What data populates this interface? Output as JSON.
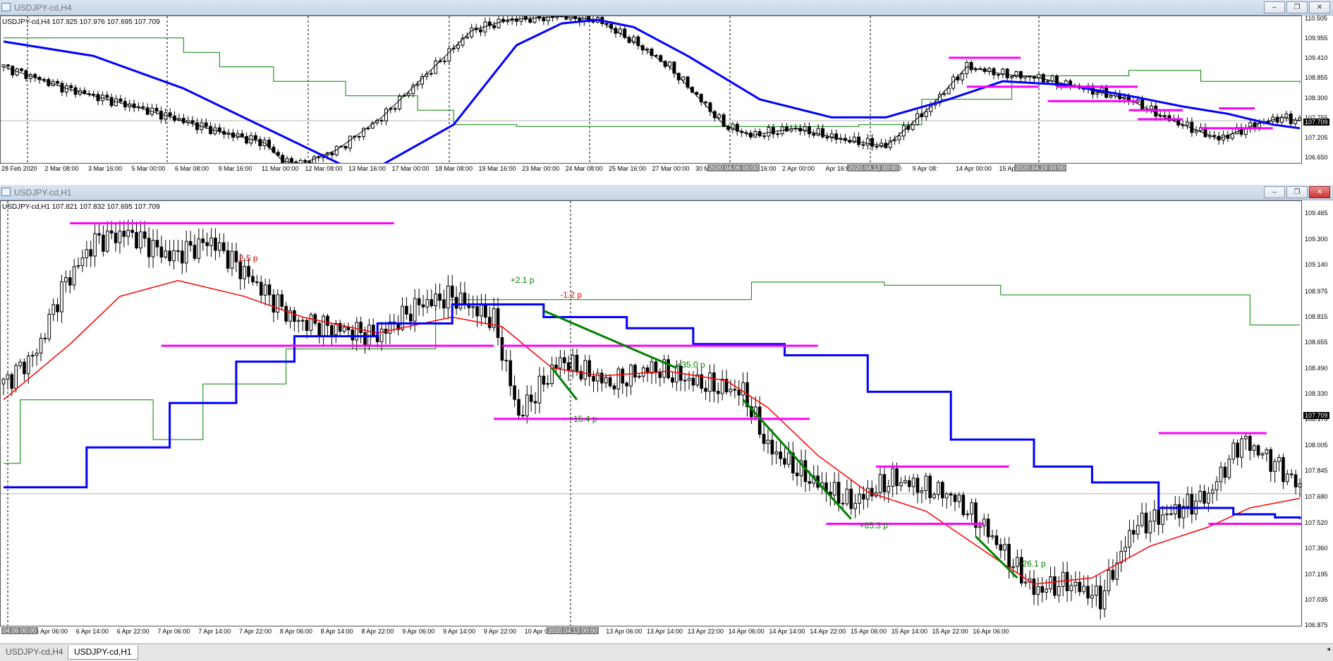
{
  "windows": [
    {
      "title": "USDJPY-cd,H4",
      "info": "USDJPY-cd,H4  107.925 107.976 107.695 107.709",
      "current_price": "107.709",
      "y_ticks": [
        "110.505",
        "109.955",
        "109.410",
        "108.855",
        "108.300",
        "107.755",
        "107.205",
        "106.650"
      ],
      "x_ticks": [
        "28 Feb 2020",
        "2 Mar 08:00",
        "3 Mar 16:00",
        "5 Mar 00:00",
        "6 Mar 08:00",
        "9 Mar 16:00",
        "11 Mar 00:00",
        "12 Mar 08:00",
        "13 Mar 16:00",
        "17 Mar 00:00",
        "18 Mar 08:00",
        "19 Mar 16:00",
        "23 Mar 00:00",
        "24 Mar 08:00",
        "25 Mar 16:00",
        "27 Mar 00:00",
        "30 Mar 08:00",
        "31 Mar 16:00",
        "2 Apr 00:00",
        "Apr 16:00",
        "8 Apr 00:00",
        "9 Apr 08:",
        "14 Apr 00:00",
        "15 Apr 08:00"
      ],
      "x_highlights": [
        "2020.04.06 00:00",
        "2020.04.13 00:00",
        "2020.04.19 00:00"
      ]
    },
    {
      "title": "USDJPY-cd,H1",
      "info": "USDJPY-cd,H1  107.821 107.832 107.695 107.709",
      "current_price": "107.709",
      "y_ticks": [
        "109.465",
        "109.300",
        "109.140",
        "108.975",
        "108.815",
        "108.655",
        "108.490",
        "108.330",
        "108.170",
        "108.005",
        "107.845",
        "107.680",
        "107.520",
        "107.360",
        "107.195",
        "107.035",
        "106.875"
      ],
      "x_ticks": [
        "6 Apr 06:00",
        "6 Apr 14:00",
        "6 Apr 22:00",
        "7 Apr 06:00",
        "7 Apr 14:00",
        "7 Apr 22:00",
        "8 Apr 06:00",
        "8 Apr 14:00",
        "8 Apr 22:00",
        "9 Apr 06:00",
        "9 Apr 14:00",
        "9 Apr 22:00",
        "10 Apr 06:00",
        "10 Apr 14",
        "13 Apr 06:00",
        "13 Apr 14:00",
        "13 Apr 22:00",
        "14 Apr 06:00",
        "14 Apr 14:00",
        "14 Apr 22:00",
        "15 Apr 06:00",
        "15 Apr 14:00",
        "15 Apr 22:00",
        "16 Apr 06:00"
      ],
      "x_highlights": [
        "04.06 00:00",
        "2020.04.13 00:00"
      ],
      "annotations": [
        {
          "text": "-2.5 p",
          "color": "#e00000"
        },
        {
          "text": "+2.1 p",
          "color": "#008000"
        },
        {
          "text": "-1.2 p",
          "color": "#e00000"
        },
        {
          "text": "+35.0 p",
          "color": "#008000"
        },
        {
          "text": "+15.4 p",
          "color": "#008000"
        },
        {
          "text": "+65.3 p",
          "color": "#008000"
        },
        {
          "text": "+26.1 p",
          "color": "#008000"
        }
      ]
    }
  ],
  "tabs": [
    "USDJPY-cd,H4",
    "USDJPY-cd,H1"
  ],
  "active_tab": 1,
  "colors": {
    "candle": "#000000",
    "fast_ma": "#000000",
    "slow_ma": "#0000ff",
    "h1_ma": "#ff0000",
    "kijun": "#008000",
    "level": "#ff00ff",
    "trend": "#008000"
  },
  "chart_data": [
    {
      "type": "candlestick",
      "title": "USDJPY-cd,H4",
      "ylim": [
        106.5,
        110.6
      ],
      "current": 107.709,
      "close_path": [
        [
          0,
          109.2
        ],
        [
          14,
          108.6
        ],
        [
          32,
          108.0
        ],
        [
          48,
          107.4
        ],
        [
          58,
          107.1
        ],
        [
          62,
          106.6
        ],
        [
          66,
          106.5
        ],
        [
          74,
          106.9
        ],
        [
          84,
          107.8
        ],
        [
          94,
          109.0
        ],
        [
          104,
          110.2
        ],
        [
          112,
          110.5
        ],
        [
          124,
          110.6
        ],
        [
          132,
          110.5
        ],
        [
          140,
          109.9
        ],
        [
          148,
          109.2
        ],
        [
          154,
          108.4
        ],
        [
          160,
          107.6
        ],
        [
          166,
          107.3
        ],
        [
          176,
          107.5
        ],
        [
          186,
          107.2
        ],
        [
          196,
          107.0
        ],
        [
          206,
          108.1
        ],
        [
          214,
          109.2
        ],
        [
          222,
          109.0
        ],
        [
          230,
          108.9
        ],
        [
          240,
          108.6
        ],
        [
          250,
          108.3
        ],
        [
          258,
          107.8
        ],
        [
          266,
          107.4
        ],
        [
          270,
          107.2
        ],
        [
          278,
          107.6
        ],
        [
          284,
          107.8
        ],
        [
          288,
          107.7
        ]
      ],
      "slow_ma": [
        [
          0,
          109.9
        ],
        [
          20,
          109.5
        ],
        [
          40,
          108.6
        ],
        [
          60,
          107.4
        ],
        [
          80,
          106.2
        ],
        [
          100,
          107.6
        ],
        [
          114,
          109.8
        ],
        [
          124,
          110.4
        ],
        [
          132,
          110.5
        ],
        [
          140,
          110.3
        ],
        [
          152,
          109.5
        ],
        [
          168,
          108.3
        ],
        [
          184,
          107.8
        ],
        [
          196,
          107.8
        ],
        [
          210,
          108.3
        ],
        [
          222,
          108.8
        ],
        [
          236,
          108.7
        ],
        [
          250,
          108.4
        ],
        [
          262,
          108.1
        ],
        [
          272,
          107.9
        ],
        [
          282,
          107.6
        ],
        [
          288,
          107.5
        ]
      ],
      "kijun": [
        [
          0,
          110.0
        ],
        [
          40,
          109.6
        ],
        [
          48,
          109.2
        ],
        [
          60,
          108.8
        ],
        [
          76,
          108.4
        ],
        [
          92,
          108.0
        ],
        [
          100,
          107.6
        ],
        [
          114,
          107.55
        ],
        [
          190,
          107.6
        ],
        [
          204,
          108.3
        ],
        [
          224,
          108.95
        ],
        [
          250,
          109.1
        ],
        [
          266,
          108.8
        ],
        [
          288,
          108.75
        ]
      ],
      "levels": [
        {
          "y": 109.45,
          "from": 210,
          "to": 226
        },
        {
          "y": 108.65,
          "from": 214,
          "to": 230
        },
        {
          "y": 108.65,
          "from": 234,
          "to": 252
        },
        {
          "y": 108.25,
          "from": 232,
          "to": 252
        },
        {
          "y": 108.0,
          "from": 250,
          "to": 262
        },
        {
          "y": 107.75,
          "from": 252,
          "to": 262
        },
        {
          "y": 108.05,
          "from": 270,
          "to": 278
        },
        {
          "y": 107.5,
          "from": 266,
          "to": 282
        }
      ]
    },
    {
      "type": "candlestick",
      "title": "USDJPY-cd,H1",
      "ylim": [
        106.87,
        109.55
      ],
      "current": 107.709,
      "close_path": [
        [
          0,
          108.4
        ],
        [
          8,
          108.6
        ],
        [
          14,
          109.0
        ],
        [
          22,
          109.3
        ],
        [
          30,
          109.35
        ],
        [
          40,
          109.2
        ],
        [
          50,
          109.3
        ],
        [
          60,
          109.05
        ],
        [
          70,
          108.8
        ],
        [
          80,
          108.75
        ],
        [
          90,
          108.7
        ],
        [
          100,
          108.9
        ],
        [
          108,
          108.95
        ],
        [
          118,
          108.8
        ],
        [
          124,
          108.2
        ],
        [
          134,
          108.55
        ],
        [
          146,
          108.4
        ],
        [
          156,
          108.5
        ],
        [
          168,
          108.4
        ],
        [
          178,
          108.35
        ],
        [
          184,
          108.0
        ],
        [
          194,
          107.8
        ],
        [
          204,
          107.65
        ],
        [
          214,
          107.8
        ],
        [
          228,
          107.7
        ],
        [
          236,
          107.5
        ],
        [
          248,
          107.1
        ],
        [
          256,
          107.15
        ],
        [
          264,
          107.05
        ],
        [
          272,
          107.5
        ],
        [
          282,
          107.6
        ],
        [
          290,
          107.7
        ],
        [
          298,
          108.05
        ],
        [
          306,
          107.9
        ],
        [
          312,
          107.75
        ]
      ],
      "red_ma": [
        [
          0,
          108.3
        ],
        [
          16,
          108.65
        ],
        [
          28,
          108.95
        ],
        [
          42,
          109.05
        ],
        [
          58,
          108.95
        ],
        [
          72,
          108.82
        ],
        [
          90,
          108.72
        ],
        [
          108,
          108.82
        ],
        [
          120,
          108.76
        ],
        [
          132,
          108.5
        ],
        [
          144,
          108.45
        ],
        [
          160,
          108.48
        ],
        [
          174,
          108.42
        ],
        [
          184,
          108.25
        ],
        [
          196,
          107.95
        ],
        [
          208,
          107.72
        ],
        [
          222,
          107.6
        ],
        [
          236,
          107.35
        ],
        [
          248,
          107.14
        ],
        [
          262,
          107.18
        ],
        [
          276,
          107.38
        ],
        [
          290,
          107.5
        ],
        [
          300,
          107.62
        ],
        [
          312,
          107.68
        ]
      ],
      "blue_step": [
        [
          0,
          107.75
        ],
        [
          20,
          108.0
        ],
        [
          40,
          108.28
        ],
        [
          56,
          108.54
        ],
        [
          70,
          108.7
        ],
        [
          90,
          108.78
        ],
        [
          108,
          108.9
        ],
        [
          120,
          108.9
        ],
        [
          130,
          108.82
        ],
        [
          150,
          108.75
        ],
        [
          166,
          108.65
        ],
        [
          188,
          108.58
        ],
        [
          208,
          108.35
        ],
        [
          228,
          108.05
        ],
        [
          248,
          107.88
        ],
        [
          262,
          107.78
        ],
        [
          278,
          107.62
        ],
        [
          296,
          107.58
        ],
        [
          306,
          107.56
        ],
        [
          312,
          107.55
        ]
      ],
      "green_kijun": [
        [
          0,
          107.9
        ],
        [
          4,
          108.3
        ],
        [
          36,
          108.05
        ],
        [
          48,
          108.4
        ],
        [
          68,
          108.62
        ],
        [
          90,
          108.62
        ],
        [
          104,
          108.93
        ],
        [
          132,
          108.93
        ],
        [
          176,
          108.93
        ],
        [
          180,
          109.04
        ],
        [
          212,
          109.02
        ],
        [
          240,
          108.96
        ],
        [
          296,
          108.96
        ],
        [
          300,
          108.77
        ],
        [
          312,
          108.77
        ]
      ],
      "levels": [
        {
          "y": 109.41,
          "from": 16,
          "to": 94
        },
        {
          "y": 108.64,
          "from": 38,
          "to": 118
        },
        {
          "y": 108.64,
          "from": 120,
          "to": 196
        },
        {
          "y": 108.18,
          "from": 118,
          "to": 194
        },
        {
          "y": 107.88,
          "from": 210,
          "to": 242
        },
        {
          "y": 107.52,
          "from": 198,
          "to": 236
        },
        {
          "y": 108.09,
          "from": 278,
          "to": 304
        },
        {
          "y": 107.52,
          "from": 290,
          "to": 318
        }
      ],
      "trend_segments": [
        [
          [
            130,
            108.86
          ],
          [
            162,
            108.5
          ]
        ],
        [
          [
            132,
            108.5
          ],
          [
            138,
            108.3
          ]
        ],
        [
          [
            178,
            108.3
          ],
          [
            204,
            107.55
          ]
        ],
        [
          [
            234,
            107.44
          ],
          [
            244,
            107.18
          ]
        ]
      ],
      "annotation_positions": [
        {
          "x": 56,
          "y": 109.16
        },
        {
          "x": 122,
          "y": 109.02
        },
        {
          "x": 134,
          "y": 108.93
        },
        {
          "x": 162,
          "y": 108.49
        },
        {
          "x": 136,
          "y": 108.15
        },
        {
          "x": 206,
          "y": 107.48
        },
        {
          "x": 244,
          "y": 107.24
        }
      ]
    }
  ]
}
